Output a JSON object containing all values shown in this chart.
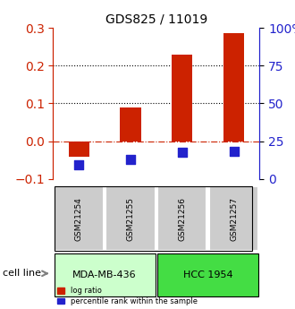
{
  "title": "GDS825 / 11019",
  "samples": [
    "GSM21254",
    "GSM21255",
    "GSM21256",
    "GSM21257"
  ],
  "log_ratios": [
    -0.04,
    0.09,
    0.23,
    0.285
  ],
  "percentile_ranks": [
    0.097,
    0.13,
    0.175,
    0.185
  ],
  "cell_lines": [
    {
      "label": "MDA-MB-436",
      "samples": [
        0,
        1
      ],
      "color": "#ccffcc"
    },
    {
      "label": "HCC 1954",
      "samples": [
        2,
        3
      ],
      "color": "#44dd44"
    }
  ],
  "ylim_left": [
    -0.1,
    0.3
  ],
  "ylim_right": [
    0.0,
    1.0
  ],
  "yticks_left": [
    -0.1,
    0.0,
    0.1,
    0.2,
    0.3
  ],
  "yticks_right": [
    0.0,
    0.25,
    0.5,
    0.75,
    1.0
  ],
  "ytick_labels_right": [
    "0",
    "25",
    "50",
    "75",
    "100%"
  ],
  "bar_color": "#cc2200",
  "dot_color": "#2222cc",
  "bar_width": 0.4,
  "dot_size": 60,
  "hline_color": "#cc2200",
  "dotted_hline_color": "#000000",
  "cell_line_bg_light": "#ccffcc",
  "cell_line_bg_dark": "#44dd44",
  "sample_box_color": "#cccccc",
  "left_axis_color": "#cc2200",
  "right_axis_color": "#2222cc"
}
